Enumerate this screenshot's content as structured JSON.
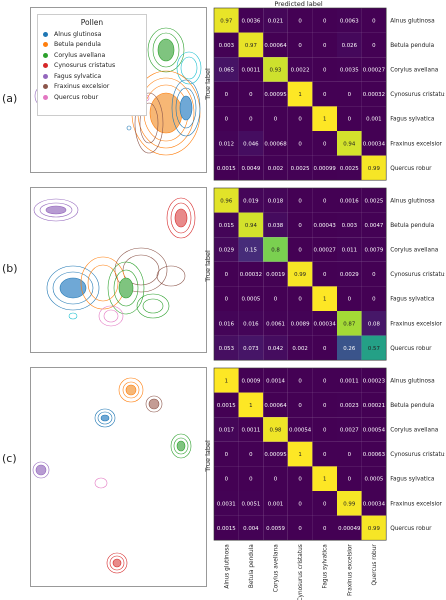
{
  "panels": [
    {
      "label": "(a)"
    },
    {
      "label": "(b)"
    },
    {
      "label": "(c)"
    }
  ],
  "legend": {
    "title": "Pollen",
    "items": [
      {
        "name": "Alnus glutinosa",
        "color": "#1f77b4"
      },
      {
        "name": "Betula pendula",
        "color": "#ff7f0e"
      },
      {
        "name": "Corylus avellana",
        "color": "#2ca02c"
      },
      {
        "name": "Cynosurus cristatus",
        "color": "#d62728"
      },
      {
        "name": "Fagus sylvatica",
        "color": "#9467bd"
      },
      {
        "name": "Fraxinus excelsior",
        "color": "#8c564b"
      },
      {
        "name": "Quercus robur",
        "color": "#e377c2"
      }
    ]
  },
  "axis": {
    "xlabel": "Predicted label",
    "ylabel": "True label"
  },
  "colors": {
    "low": "#440154",
    "mid": "#21918c",
    "high": "#fde725"
  },
  "chart_data": [
    {
      "type": "heatmap",
      "title": "",
      "xlabel": "Predicted label",
      "ylabel": "True label",
      "categories": [
        "Alnus glutinosa",
        "Betula pendula",
        "Corylus avellana",
        "Cynosurus cristatus",
        "Fagus sylvatica",
        "Fraxinus excelsior",
        "Quercus robur"
      ],
      "labels": [
        [
          "0.97",
          "0.0036",
          "0.021",
          "0",
          "0",
          "0.0063",
          "0"
        ],
        [
          "0.003",
          "0.97",
          "0.00064",
          "0",
          "0",
          "0.026",
          "0"
        ],
        [
          "0.065",
          "0.0011",
          "0.93",
          "0.0022",
          "0",
          "0.0035",
          "0.00027"
        ],
        [
          "0",
          "0",
          "0.00095",
          "1",
          "0",
          "0",
          "0.00032"
        ],
        [
          "0",
          "0",
          "0",
          "0",
          "1",
          "0",
          "0.001"
        ],
        [
          "0.012",
          "0.046",
          "0.00068",
          "0",
          "0",
          "0.94",
          "0.00034"
        ],
        [
          "0.0015",
          "0.0049",
          "0.002",
          "0.0025",
          "0.00099",
          "0.0025",
          "0.99"
        ]
      ],
      "values": [
        [
          0.97,
          0.0036,
          0.021,
          0,
          0,
          0.0063,
          0
        ],
        [
          0.003,
          0.97,
          0.00064,
          0,
          0,
          0.026,
          0
        ],
        [
          0.065,
          0.0011,
          0.93,
          0.0022,
          0,
          0.0035,
          0.00027
        ],
        [
          0,
          0,
          0.00095,
          1,
          0,
          0,
          0.00032
        ],
        [
          0,
          0,
          0,
          0,
          1,
          0,
          0.001
        ],
        [
          0.012,
          0.046,
          0.00068,
          0,
          0,
          0.94,
          0.00034
        ],
        [
          0.0015,
          0.0049,
          0.002,
          0.0025,
          0.00099,
          0.0025,
          0.99
        ]
      ]
    },
    {
      "type": "heatmap",
      "title": "",
      "xlabel": "Predicted label",
      "ylabel": "True label",
      "categories": [
        "Alnus glutinosa",
        "Betula pendula",
        "Corylus avellana",
        "Cynosurus cristatus",
        "Fagus sylvatica",
        "Fraxinus excelsior",
        "Quercus robur"
      ],
      "labels": [
        [
          "0.96",
          "0.019",
          "0.018",
          "0",
          "0",
          "0.0016",
          "0.0025"
        ],
        [
          "0.015",
          "0.94",
          "0.038",
          "0",
          "0.00043",
          "0.003",
          "0.0047"
        ],
        [
          "0.029",
          "0.15",
          "0.8",
          "0",
          "0.00027",
          "0.011",
          "0.0079"
        ],
        [
          "0",
          "0.00032",
          "0.0019",
          "0.99",
          "0",
          "0.0029",
          "0"
        ],
        [
          "0",
          "0.0005",
          "0",
          "0",
          "1",
          "0",
          "0"
        ],
        [
          "0.016",
          "0.016",
          "0.0061",
          "0.0089",
          "0.00034",
          "0.87",
          "0.08"
        ],
        [
          "0.053",
          "0.073",
          "0.042",
          "0.002",
          "0",
          "0.26",
          "0.57"
        ]
      ],
      "values": [
        [
          0.96,
          0.019,
          0.018,
          0,
          0,
          0.0016,
          0.0025
        ],
        [
          0.015,
          0.94,
          0.038,
          0,
          0.00043,
          0.003,
          0.0047
        ],
        [
          0.029,
          0.15,
          0.8,
          0,
          0.00027,
          0.011,
          0.0079
        ],
        [
          0,
          0.00032,
          0.0019,
          0.99,
          0,
          0.0029,
          0
        ],
        [
          0,
          0.0005,
          0,
          0,
          1,
          0,
          0
        ],
        [
          0.016,
          0.016,
          0.0061,
          0.0089,
          0.00034,
          0.87,
          0.08
        ],
        [
          0.053,
          0.073,
          0.042,
          0.002,
          0,
          0.26,
          0.57
        ]
      ]
    },
    {
      "type": "heatmap",
      "title": "",
      "xlabel": "Predicted label",
      "ylabel": "True label",
      "categories": [
        "Alnus glutinosa",
        "Betula pendula",
        "Corylus avellana",
        "Cynosurus cristatus",
        "Fagus sylvatica",
        "Fraxinus excelsior",
        "Quercus robur"
      ],
      "labels": [
        [
          "1",
          "0.0009",
          "0.0014",
          "0",
          "0",
          "0.0011",
          "0.00023"
        ],
        [
          "0.0015",
          "1",
          "0.00064",
          "0",
          "0",
          "0.0023",
          "0.00021"
        ],
        [
          "0.017",
          "0.0011",
          "0.98",
          "0.00054",
          "0",
          "0.0027",
          "0.00054"
        ],
        [
          "0",
          "0",
          "0.00095",
          "1",
          "0",
          "0",
          "0.00063"
        ],
        [
          "0",
          "0",
          "0",
          "0",
          "1",
          "0",
          "0.0005"
        ],
        [
          "0.0031",
          "0.0051",
          "0.001",
          "0",
          "0",
          "0.99",
          "0.00034"
        ],
        [
          "0.0015",
          "0.004",
          "0.0059",
          "0",
          "0",
          "0.00049",
          "0.99"
        ]
      ],
      "values": [
        [
          1,
          0.0009,
          0.0014,
          0,
          0,
          0.0011,
          0.00023
        ],
        [
          0.0015,
          1,
          0.00064,
          0,
          0,
          0.0023,
          0.00021
        ],
        [
          0.017,
          0.0011,
          0.98,
          0.00054,
          0,
          0.0027,
          0.00054
        ],
        [
          0,
          0,
          0.00095,
          1,
          0,
          0,
          0.00063
        ],
        [
          0,
          0,
          0,
          0,
          1,
          0,
          0.0005
        ],
        [
          0.0031,
          0.0051,
          0.001,
          0,
          0,
          0.99,
          0.00034
        ],
        [
          0.0015,
          0.004,
          0.0059,
          0,
          0,
          0.00049,
          0.99
        ]
      ]
    }
  ]
}
